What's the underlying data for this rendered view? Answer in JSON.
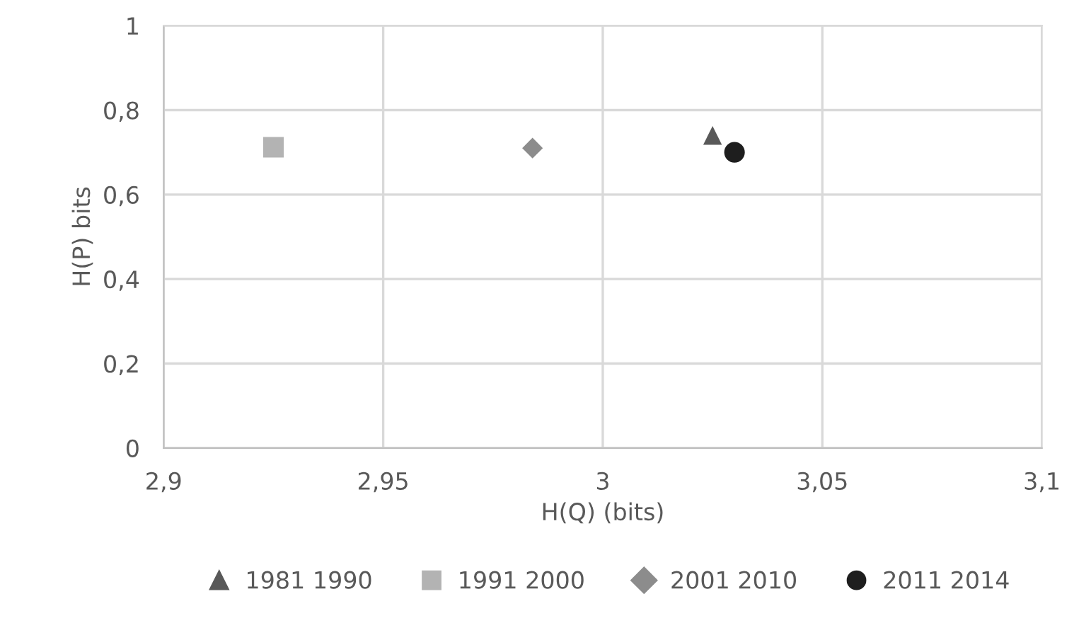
{
  "chart_data": {
    "type": "scatter",
    "xlabel": "H(Q) (bits)",
    "ylabel": "H(P) bits",
    "xlim": [
      2.9,
      3.1
    ],
    "xticks": [
      {
        "value": 2.9,
        "label": "2,9"
      },
      {
        "value": 2.95,
        "label": "2,95"
      },
      {
        "value": 3,
        "label": "3"
      },
      {
        "value": 3.05,
        "label": "3,05"
      },
      {
        "value": 3.1,
        "label": "3,1"
      }
    ],
    "ylim": [
      0,
      1
    ],
    "yticks": [
      {
        "value": 0,
        "label": "0"
      },
      {
        "value": 0.2,
        "label": "0,2"
      },
      {
        "value": 0.4,
        "label": "0,4"
      },
      {
        "value": 0.6,
        "label": "0,6"
      },
      {
        "value": 0.8,
        "label": "0,8"
      },
      {
        "value": 1,
        "label": "1"
      }
    ],
    "grid": true,
    "legend": "bottom",
    "series": [
      {
        "name": "1981 1990",
        "color": "#595959",
        "marker": "triangle",
        "x": [
          3.025
        ],
        "values": [
          0.74
        ]
      },
      {
        "name": "1991 2000",
        "color": "#b3b3b3",
        "marker": "square",
        "x": [
          2.925
        ],
        "values": [
          0.712
        ]
      },
      {
        "name": "2001 2010",
        "color": "#8c8c8c",
        "marker": "diamond",
        "x": [
          2.984
        ],
        "values": [
          0.71
        ]
      },
      {
        "name": "2011 2014",
        "color": "#1e1e1e",
        "marker": "circle",
        "x": [
          3.03
        ],
        "values": [
          0.7
        ]
      }
    ]
  }
}
